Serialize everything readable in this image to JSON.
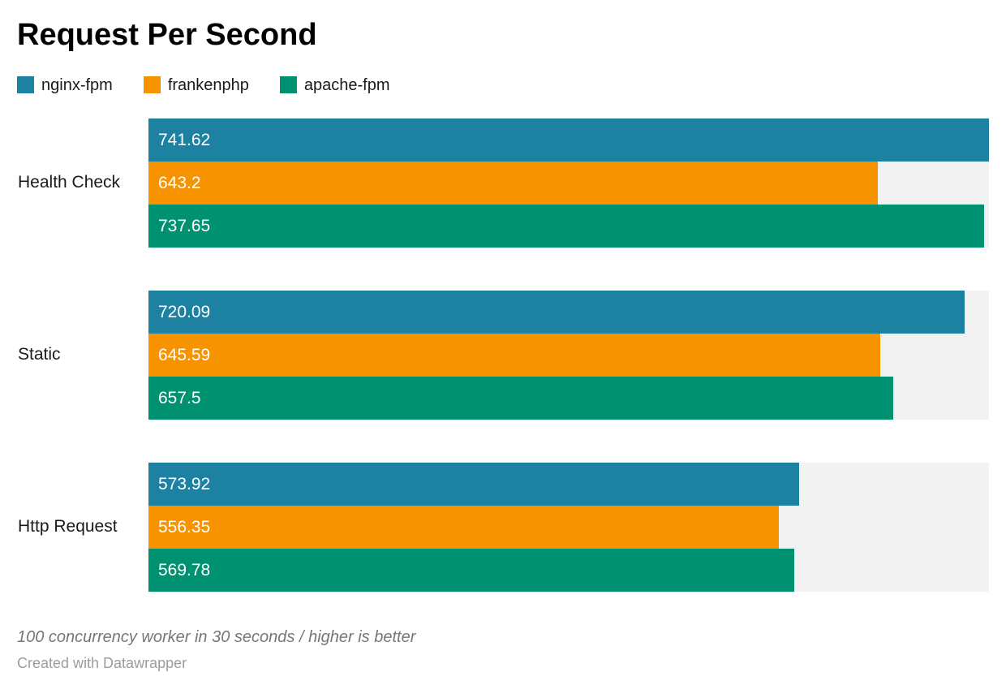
{
  "title": "Request Per Second",
  "chart_data": {
    "type": "bar",
    "orientation": "horizontal",
    "title": "Request Per Second",
    "categories": [
      "Health Check",
      "Static",
      "Http Request"
    ],
    "series": [
      {
        "name": "nginx-fpm",
        "color": "#1d81a2",
        "values": [
          741.62,
          720.09,
          573.92
        ]
      },
      {
        "name": "frankenphp",
        "color": "#f89300",
        "values": [
          643.2,
          645.59,
          556.35
        ]
      },
      {
        "name": "apache-fpm",
        "color": "#009270",
        "values": [
          737.65,
          657.5,
          569.78
        ]
      }
    ],
    "xlim": [
      0,
      741.62
    ],
    "grid": false,
    "legend_position": "top",
    "value_labels": "inside-start",
    "value_label_color": "#ffffff",
    "track_color": "#f2f2f2"
  },
  "footer": {
    "note": "100 concurrency worker in 30 seconds / higher is better",
    "credit": "Created with Datawrapper"
  }
}
